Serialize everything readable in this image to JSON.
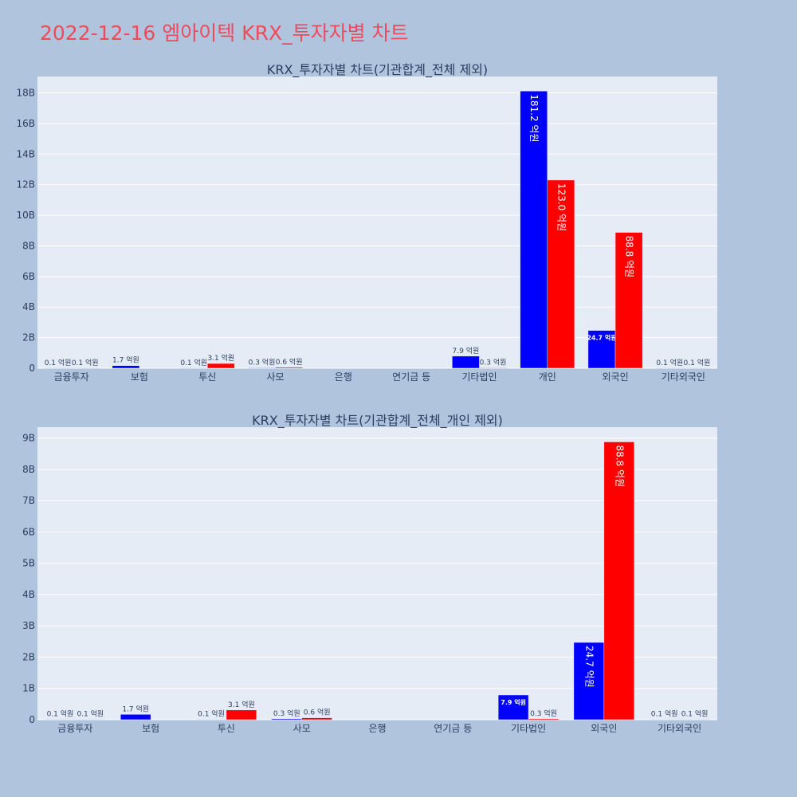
{
  "title": "2022-12-16 엠아이텍 KRX_투자자별 차트",
  "colors": {
    "buy": "#0000ff",
    "sell": "#ff0000",
    "title": "#ee4a5a",
    "plot_bg": "#e5ecf6",
    "page_bg": "#b0c4de"
  },
  "chart_data": [
    {
      "type": "bar",
      "title": "KRX_투자자별 차트(기관합계_전체 제외)",
      "categories": [
        "금융투자",
        "보험",
        "투신",
        "사모",
        "은행",
        "연기금 등",
        "기타법인",
        "개인",
        "외국인",
        "기타외국인"
      ],
      "series": [
        {
          "color": "#0000ff",
          "values": [
            10000000,
            170000000,
            10000000,
            30000000,
            0,
            0,
            790000000,
            18120000000,
            2470000000,
            10000000
          ],
          "labels": [
            "0.1 억원",
            "1.7 억원",
            "0.1 억원",
            "0.3 억원",
            "",
            "",
            "7.9 억원",
            "181.2 억원",
            "24.7 억원",
            "0.1 억원"
          ]
        },
        {
          "color": "#ff0000",
          "values": [
            10000000,
            0,
            310000000,
            60000000,
            0,
            0,
            30000000,
            12300000000,
            8880000000,
            10000000
          ],
          "labels": [
            "0.1 억원",
            "",
            "3.1 억원",
            "0.6 억원",
            "",
            "",
            "0.3 억원",
            "123.0 억원",
            "88.8 억원",
            "0.1 억원"
          ]
        }
      ],
      "yticks": [
        0,
        2000000000,
        4000000000,
        6000000000,
        8000000000,
        10000000000,
        12000000000,
        14000000000,
        16000000000,
        18000000000
      ],
      "yticklabels": [
        "0",
        "2B",
        "4B",
        "6B",
        "8B",
        "10B",
        "12B",
        "14B",
        "16B",
        "18B"
      ],
      "ylim": [
        0,
        19070000000
      ],
      "grid": true
    },
    {
      "type": "bar",
      "title": "KRX_투자자별 차트(기관합계_전체_개인 제외)",
      "categories": [
        "금융투자",
        "보험",
        "투신",
        "사모",
        "은행",
        "연기금 등",
        "기타법인",
        "외국인",
        "기타외국인"
      ],
      "series": [
        {
          "color": "#0000ff",
          "values": [
            10000000,
            170000000,
            10000000,
            30000000,
            0,
            0,
            790000000,
            2470000000,
            10000000
          ],
          "labels": [
            "0.1 억원",
            "1.7 억원",
            "0.1 억원",
            "0.3 억원",
            "",
            "",
            "7.9 억원",
            "24.7 억원",
            "0.1 억원"
          ]
        },
        {
          "color": "#ff0000",
          "values": [
            10000000,
            0,
            310000000,
            60000000,
            0,
            0,
            30000000,
            8880000000,
            10000000
          ],
          "labels": [
            "0.1 억원",
            "",
            "3.1 억원",
            "0.6 억원",
            "",
            "",
            "0.3 억원",
            "88.8 억원",
            "0.1 억원"
          ]
        }
      ],
      "yticks": [
        0,
        1000000000,
        2000000000,
        3000000000,
        4000000000,
        5000000000,
        6000000000,
        7000000000,
        8000000000,
        9000000000
      ],
      "yticklabels": [
        "0",
        "1B",
        "2B",
        "3B",
        "4B",
        "5B",
        "6B",
        "7B",
        "8B",
        "9B"
      ],
      "ylim": [
        0,
        9350000000
      ],
      "grid": true
    }
  ]
}
